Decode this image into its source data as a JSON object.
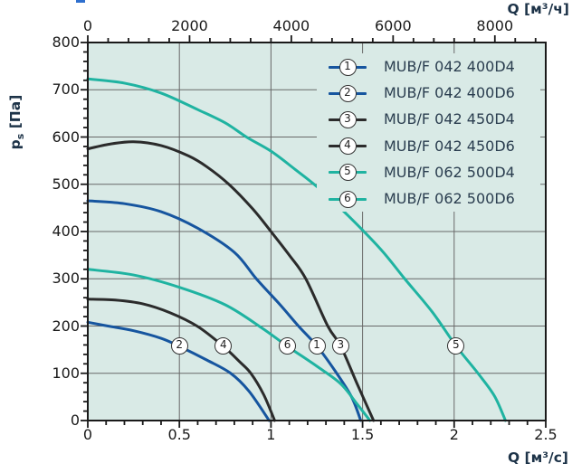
{
  "colors": {
    "plot_bg": "#d9eae6",
    "grid": "#686868",
    "axis": "#1a1a1a",
    "title_text": "#1d3348",
    "legend_text": "#2a3d4f",
    "blue": "#16559f",
    "black": "#2b2b2b",
    "teal": "#1fb3a1"
  },
  "chart_data": {
    "type": "line",
    "title": "",
    "grid": true,
    "legend_position": "top-right-inside",
    "x_axis_bottom": {
      "label": "Q [м³/с]",
      "min": 0,
      "max": 2.5,
      "major_ticks": [
        0,
        0.5,
        1,
        1.5,
        2,
        2.5
      ],
      "tick_labels": [
        "0",
        "0.5",
        "1",
        "1.5",
        "2",
        "2.5"
      ],
      "minor_step": 0.1
    },
    "x_axis_top": {
      "label": "Q [м³/ч]",
      "min": 0,
      "max": 9000,
      "units_per_bottom_unit": 3600,
      "major_ticks": [
        0,
        2000,
        4000,
        6000,
        8000
      ],
      "tick_labels": [
        "0",
        "2000",
        "4000",
        "6000",
        "8000"
      ],
      "minor_step": 400,
      "minor_max": 8800
    },
    "y_axis": {
      "label_main": "p",
      "label_sub": "s",
      "label_unit": " [Па]",
      "min": 0,
      "max": 800,
      "major_step": 100,
      "minor_step": 20,
      "tick_labels": [
        "800",
        "700",
        "600",
        "500",
        "400",
        "300",
        "200",
        "100",
        "0"
      ]
    },
    "series": [
      {
        "id": "1",
        "name": "MUB/F 042 400D4",
        "color": "#16559f",
        "points": [
          [
            0,
            465
          ],
          [
            0.2,
            459
          ],
          [
            0.4,
            442
          ],
          [
            0.6,
            407
          ],
          [
            0.8,
            356
          ],
          [
            0.92,
            300
          ],
          [
            1.05,
            245
          ],
          [
            1.15,
            200
          ],
          [
            1.25,
            158
          ],
          [
            1.35,
            105
          ],
          [
            1.44,
            50
          ],
          [
            1.49,
            0
          ]
        ],
        "marker": {
          "q": 1.25,
          "p": 158
        }
      },
      {
        "id": "2",
        "name": "MUB/F 042 400D6",
        "color": "#16559f",
        "points": [
          [
            0,
            208
          ],
          [
            0.11,
            200
          ],
          [
            0.25,
            190
          ],
          [
            0.4,
            174
          ],
          [
            0.5,
            157
          ],
          [
            0.65,
            128
          ],
          [
            0.78,
            100
          ],
          [
            0.88,
            62
          ],
          [
            0.99,
            0
          ]
        ],
        "marker": {
          "q": 0.5,
          "p": 157
        }
      },
      {
        "id": "3",
        "name": "MUB/F 042 450D4",
        "color": "#2b2b2b",
        "points": [
          [
            0,
            575
          ],
          [
            0.12,
            585
          ],
          [
            0.25,
            590
          ],
          [
            0.4,
            582
          ],
          [
            0.55,
            560
          ],
          [
            0.65,
            537
          ],
          [
            0.77,
            500
          ],
          [
            0.9,
            448
          ],
          [
            1.0,
            400
          ],
          [
            1.1,
            350
          ],
          [
            1.19,
            300
          ],
          [
            1.31,
            200
          ],
          [
            1.38,
            158
          ],
          [
            1.47,
            78
          ],
          [
            1.56,
            0
          ]
        ],
        "marker": {
          "q": 1.38,
          "p": 158
        }
      },
      {
        "id": "4",
        "name": "MUB/F 042 450D6",
        "color": "#2b2b2b",
        "points": [
          [
            0,
            257
          ],
          [
            0.15,
            255
          ],
          [
            0.3,
            247
          ],
          [
            0.45,
            228
          ],
          [
            0.6,
            199
          ],
          [
            0.74,
            157
          ],
          [
            0.83,
            124
          ],
          [
            0.89,
            100
          ],
          [
            0.96,
            55
          ],
          [
            1.02,
            0
          ]
        ],
        "marker": {
          "q": 0.74,
          "p": 157
        }
      },
      {
        "id": "5",
        "name": "MUB/F 062 500D4",
        "color": "#1fb3a1",
        "points": [
          [
            0,
            723
          ],
          [
            0.2,
            714
          ],
          [
            0.4,
            693
          ],
          [
            0.6,
            658
          ],
          [
            0.75,
            630
          ],
          [
            0.87,
            599
          ],
          [
            1.0,
            570
          ],
          [
            1.13,
            532
          ],
          [
            1.26,
            492
          ],
          [
            1.42,
            434
          ],
          [
            1.6,
            362
          ],
          [
            1.73,
            300
          ],
          [
            1.88,
            230
          ],
          [
            2.01,
            158
          ],
          [
            2.13,
            100
          ],
          [
            2.22,
            52
          ],
          [
            2.28,
            0
          ]
        ],
        "marker": {
          "q": 2.01,
          "p": 158
        }
      },
      {
        "id": "6",
        "name": "MUB/F 062 500D6",
        "color": "#1fb3a1",
        "points": [
          [
            0,
            320
          ],
          [
            0.25,
            308
          ],
          [
            0.5,
            282
          ],
          [
            0.75,
            245
          ],
          [
            0.95,
            196
          ],
          [
            1.09,
            157
          ],
          [
            1.25,
            115
          ],
          [
            1.38,
            78
          ],
          [
            1.47,
            35
          ],
          [
            1.54,
            0
          ]
        ],
        "marker": {
          "q": 1.09,
          "p": 157
        }
      }
    ]
  }
}
